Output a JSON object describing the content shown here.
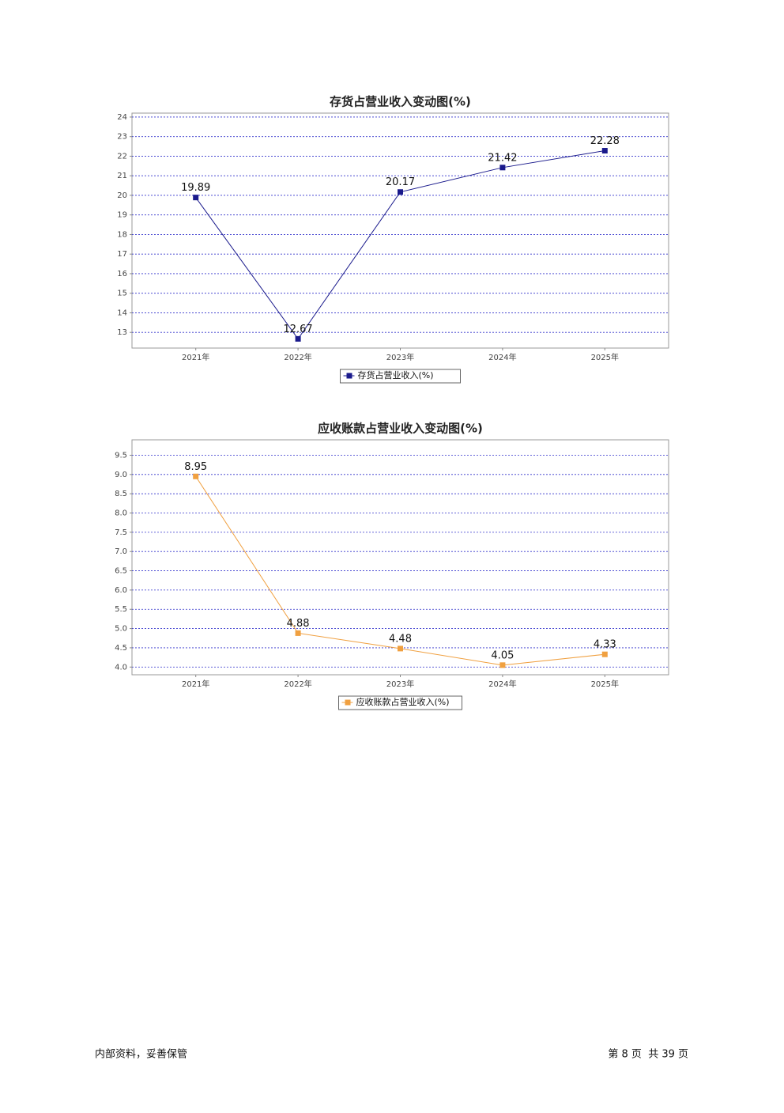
{
  "chart_data": [
    {
      "type": "line",
      "title": "存货占营业收入变动图(%)",
      "categories": [
        "2021年",
        "2022年",
        "2023年",
        "2024年",
        "2025年"
      ],
      "series": [
        {
          "name": "存货占营业收入(%)",
          "color": "#1a1a8c",
          "values": [
            19.89,
            12.67,
            20.17,
            21.42,
            22.28
          ]
        }
      ],
      "ylim": [
        12.2,
        24.2
      ],
      "yticks": [
        13,
        14,
        15,
        16,
        17,
        18,
        19,
        20,
        21,
        22,
        23,
        24
      ],
      "grid": true,
      "legend": "bottom"
    },
    {
      "type": "line",
      "title": "应收账款占营业收入变动图(%)",
      "categories": [
        "2021年",
        "2022年",
        "2023年",
        "2024年",
        "2025年"
      ],
      "series": [
        {
          "name": "应收账款占营业收入(%)",
          "color": "#f0a040",
          "values": [
            8.95,
            4.88,
            4.48,
            4.05,
            4.33
          ]
        }
      ],
      "ylim": [
        3.8,
        9.9
      ],
      "yticks": [
        {
          "value": 4,
          "label": "4.0"
        },
        4.5,
        {
          "value": 5,
          "label": "5.0"
        },
        5.5,
        {
          "value": 6,
          "label": "6.0"
        },
        6.5,
        {
          "value": 7,
          "label": "7.0"
        },
        7.5,
        {
          "value": 8,
          "label": "8.0"
        },
        8.5,
        {
          "value": 9,
          "label": "9.0"
        },
        9.5
      ],
      "grid": true,
      "legend": "bottom"
    }
  ],
  "footer": {
    "left": "内部资料，妥善保管",
    "right": "第 8 页  共 39 页"
  }
}
